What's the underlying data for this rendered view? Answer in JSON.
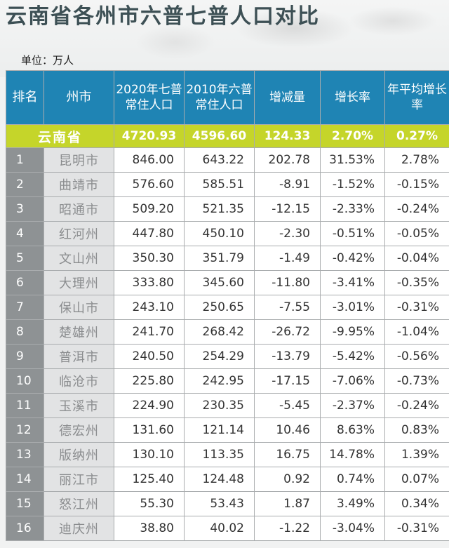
{
  "title": "云南省各州市六普七普人口对比",
  "unit": "单位：万人",
  "headers": {
    "rank": "排名",
    "city": "州市",
    "pop2020": "2020年七普常住人口",
    "pop2010": "2010年六普常住人口",
    "change": "增减量",
    "growth": "增长率",
    "annual": "年平均增长率"
  },
  "province": {
    "name": "云南省",
    "pop2020": "4720.93",
    "pop2010": "4596.60",
    "change": "124.33",
    "growth": "2.70%",
    "annual": "0.27%"
  },
  "rows": [
    {
      "rank": "1",
      "city": "昆明市",
      "pop2020": "846.00",
      "pop2010": "643.22",
      "change": "202.78",
      "growth": "31.53%",
      "annual": "2.78%"
    },
    {
      "rank": "2",
      "city": "曲靖市",
      "pop2020": "576.60",
      "pop2010": "585.51",
      "change": "-8.91",
      "growth": "-1.52%",
      "annual": "-0.15%"
    },
    {
      "rank": "3",
      "city": "昭通市",
      "pop2020": "509.20",
      "pop2010": "521.35",
      "change": "-12.15",
      "growth": "-2.33%",
      "annual": "-0.24%"
    },
    {
      "rank": "4",
      "city": "红河州",
      "pop2020": "447.80",
      "pop2010": "450.10",
      "change": "-2.30",
      "growth": "-0.51%",
      "annual": "-0.05%"
    },
    {
      "rank": "5",
      "city": "文山州",
      "pop2020": "350.30",
      "pop2010": "351.79",
      "change": "-1.49",
      "growth": "-0.42%",
      "annual": "-0.04%"
    },
    {
      "rank": "6",
      "city": "大理州",
      "pop2020": "333.80",
      "pop2010": "345.60",
      "change": "-11.80",
      "growth": "-3.41%",
      "annual": "-0.35%"
    },
    {
      "rank": "7",
      "city": "保山市",
      "pop2020": "243.10",
      "pop2010": "250.65",
      "change": "-7.55",
      "growth": "-3.01%",
      "annual": "-0.31%"
    },
    {
      "rank": "8",
      "city": "楚雄州",
      "pop2020": "241.70",
      "pop2010": "268.42",
      "change": "-26.72",
      "growth": "-9.95%",
      "annual": "-1.04%"
    },
    {
      "rank": "9",
      "city": "普洱市",
      "pop2020": "240.50",
      "pop2010": "254.29",
      "change": "-13.79",
      "growth": "-5.42%",
      "annual": "-0.56%"
    },
    {
      "rank": "10",
      "city": "临沧市",
      "pop2020": "225.80",
      "pop2010": "242.95",
      "change": "-17.15",
      "growth": "-7.06%",
      "annual": "-0.73%"
    },
    {
      "rank": "11",
      "city": "玉溪市",
      "pop2020": "224.90",
      "pop2010": "230.35",
      "change": "-5.45",
      "growth": "-2.37%",
      "annual": "-0.24%"
    },
    {
      "rank": "12",
      "city": "德宏州",
      "pop2020": "131.60",
      "pop2010": "121.14",
      "change": "10.46",
      "growth": "8.63%",
      "annual": "0.83%"
    },
    {
      "rank": "13",
      "city": "版纳州",
      "pop2020": "130.10",
      "pop2010": "113.35",
      "change": "16.75",
      "growth": "14.78%",
      "annual": "1.39%"
    },
    {
      "rank": "14",
      "city": "丽江市",
      "pop2020": "125.40",
      "pop2010": "124.48",
      "change": "0.92",
      "growth": "0.74%",
      "annual": "0.07%"
    },
    {
      "rank": "15",
      "city": "怒江州",
      "pop2020": "55.30",
      "pop2010": "53.43",
      "change": "1.87",
      "growth": "3.49%",
      "annual": "0.34%"
    },
    {
      "rank": "16",
      "city": "迪庆州",
      "pop2020": "38.80",
      "pop2010": "40.02",
      "change": "-1.22",
      "growth": "-3.04%",
      "annual": "-0.31%"
    }
  ],
  "colors": {
    "header": "#1f84b4",
    "province_row": "#c5d52a",
    "rank_cell": "#8e9294",
    "city_cell": "#e2e3e4",
    "title": "#3d5055"
  }
}
